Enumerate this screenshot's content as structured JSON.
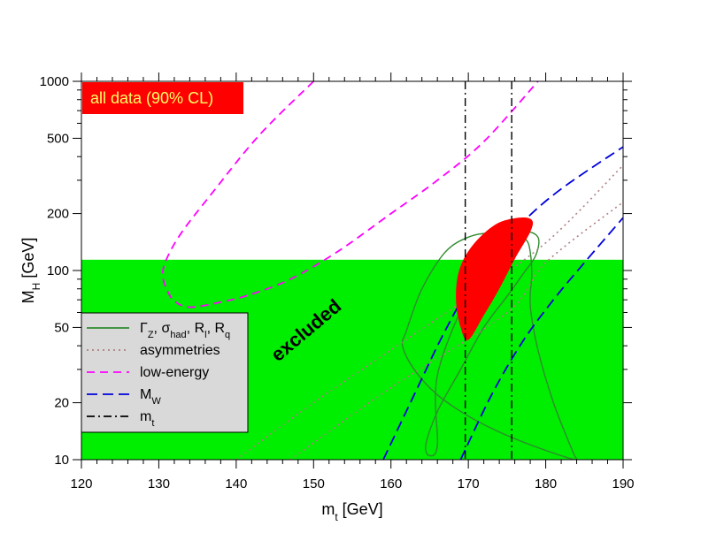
{
  "chart_data": {
    "type": "scatter",
    "xlabel": "m",
    "xlabel_sub": "t",
    "xlabel_unit": " [GeV]",
    "ylabel": "M",
    "ylabel_sub": "H",
    "ylabel_unit": " [GeV]",
    "xlim": [
      120,
      190
    ],
    "ylim": [
      10,
      1000
    ],
    "yscale": "log",
    "x_ticks": [
      120,
      130,
      140,
      150,
      160,
      170,
      180,
      190
    ],
    "y_ticks": [
      10,
      20,
      50,
      100,
      200,
      500,
      1000
    ],
    "y_tick_labels": [
      "10",
      "20",
      "50",
      "100",
      "200",
      "500",
      "1000"
    ],
    "badge": "all data (90% CL)",
    "excluded_label": "excluded",
    "excluded_region": {
      "y_max": 114,
      "color": "#00ee00"
    },
    "mt_band": {
      "x_low": 169.6,
      "x_high": 175.6
    },
    "legend": {
      "placement": "lower-left",
      "entries": [
        {
          "key": "gamma",
          "label_html": "Γ<tspan baseline-shift='sub' font-size='11'>Z</tspan>, σ<tspan baseline-shift='sub' font-size='11'>had</tspan>, R<tspan baseline-shift='sub' font-size='11'>l</tspan>, R<tspan baseline-shift='sub' font-size='11'>q</tspan>",
          "color": "#2e8b2e",
          "dash": ""
        },
        {
          "key": "asym",
          "label": "asymmetries",
          "color": "#b08080",
          "dash": "2,4"
        },
        {
          "key": "lowe",
          "label": "low-energy",
          "color": "#ff00ff",
          "dash": "9,6"
        },
        {
          "key": "mw",
          "label_main": "M",
          "label_sub": "W",
          "color": "#0000dd",
          "dash": "12,6"
        },
        {
          "key": "mt",
          "label_main": "m",
          "label_sub": "t",
          "color": "#000000",
          "dash": "9,4,2,4"
        }
      ]
    },
    "series": [
      {
        "name": "low-energy",
        "kind": "contour",
        "color": "#ff00ff",
        "points": [
          [
            150,
            1000
          ],
          [
            143,
            520
          ],
          [
            137,
            260
          ],
          [
            133,
            160
          ],
          [
            131,
            115
          ],
          [
            130.5,
            95
          ],
          [
            131,
            80
          ],
          [
            132,
            69
          ],
          [
            134,
            64
          ],
          [
            138,
            68
          ],
          [
            142,
            75
          ],
          [
            147,
            90
          ],
          [
            153,
            125
          ],
          [
            160,
            200
          ],
          [
            166,
            300
          ],
          [
            172,
            480
          ],
          [
            179,
            1000
          ]
        ]
      },
      {
        "name": "Gamma_Z, sigma_had, R_l, R_q (inner)",
        "kind": "contour",
        "color": "#2e8b2e",
        "points": [
          [
            166,
            28
          ],
          [
            170,
            75
          ],
          [
            174,
            135
          ],
          [
            177,
            160
          ],
          [
            179,
            150
          ],
          [
            178.7,
            120
          ],
          [
            177,
            95
          ],
          [
            175,
            73
          ],
          [
            172,
            50
          ],
          [
            169,
            30
          ],
          [
            166,
            18
          ],
          [
            164.5,
            12
          ],
          [
            165,
            10.5
          ],
          [
            166,
            12
          ],
          [
            166,
            28
          ]
        ]
      },
      {
        "name": "Gamma_Z, sigma_had, R_l, R_q (outer)",
        "kind": "contour",
        "color": "#2e8b2e",
        "points": [
          [
            162,
            48
          ],
          [
            164,
            80
          ],
          [
            167,
            125
          ],
          [
            170,
            150
          ],
          [
            173,
            158
          ],
          [
            176,
            155
          ],
          [
            177.5,
            145
          ],
          [
            178,
            125
          ],
          [
            178.2,
            95
          ],
          [
            178,
            65
          ],
          [
            179,
            38
          ],
          [
            181,
            20
          ],
          [
            183.5,
            11
          ],
          [
            184,
            10
          ],
          [
            182,
            10.5
          ],
          [
            178,
            12
          ],
          [
            174,
            14
          ],
          [
            170,
            17
          ],
          [
            166,
            22
          ],
          [
            163,
            30
          ],
          [
            161.5,
            40
          ],
          [
            162,
            48
          ]
        ]
      },
      {
        "name": "asymmetries",
        "kind": "line",
        "color": "#b08080",
        "points": [
          [
            140,
            10
          ],
          [
            150,
            20
          ],
          [
            160,
            38
          ],
          [
            170,
            72
          ],
          [
            180,
            140
          ],
          [
            190,
            360
          ]
        ]
      },
      {
        "name": "asymmetries (2)",
        "kind": "line",
        "color": "#b08080",
        "points": [
          [
            147,
            10
          ],
          [
            160,
            24
          ],
          [
            175,
            60
          ],
          [
            180,
            110
          ],
          [
            190,
            230
          ]
        ]
      },
      {
        "name": "M_W (1)",
        "kind": "line",
        "color": "#0000dd",
        "points": [
          [
            159,
            10
          ],
          [
            163,
            22
          ],
          [
            167,
            48
          ],
          [
            172,
            110
          ],
          [
            177,
            180
          ],
          [
            182,
            270
          ],
          [
            190,
            450
          ]
        ]
      },
      {
        "name": "M_W (2)",
        "kind": "line",
        "color": "#0000dd",
        "points": [
          [
            169,
            10
          ],
          [
            173,
            22
          ],
          [
            177,
            42
          ],
          [
            181,
            70
          ],
          [
            185,
            110
          ],
          [
            190,
            190
          ]
        ]
      },
      {
        "name": "all data 90% CL",
        "kind": "filled-ellipse",
        "color": "#ff0000",
        "points": [
          [
            170,
            43
          ],
          [
            172,
            58
          ],
          [
            174,
            80
          ],
          [
            176,
            115
          ],
          [
            178,
            160
          ],
          [
            178.2,
            185
          ],
          [
            176.5,
            190
          ],
          [
            173.5,
            175
          ],
          [
            170.5,
            135
          ],
          [
            168.8,
            100
          ],
          [
            168.4,
            70
          ],
          [
            169,
            50
          ],
          [
            170,
            43
          ]
        ]
      }
    ]
  }
}
